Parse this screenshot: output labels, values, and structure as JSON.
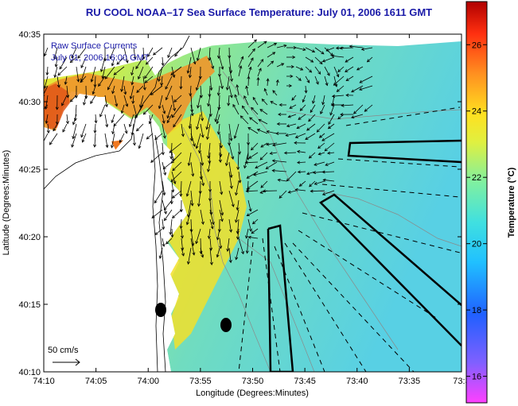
{
  "title": "RU COOL  NOAA–17  Sea Surface Temperature:  July 01, 2006 1611 GMT",
  "overlay": {
    "line1": "Raw Surface Currents",
    "line2": "July 01, 2006 16:00 GMT"
  },
  "scale_label": "50 cm/s",
  "axes": {
    "xlabel": "Longitude (Degrees:Minutes)",
    "ylabel": "Latitude (Degrees:Minutes)",
    "xticks": [
      "74:10",
      "74:05",
      "74:00",
      "73:55",
      "73:50",
      "73:45",
      "73:40",
      "73:35",
      "73:3"
    ],
    "yticks": [
      "40:35",
      "40:30",
      "40:25",
      "40:20",
      "40:15",
      "40:10"
    ]
  },
  "colorbar": {
    "label": "Temperature (°C)",
    "ticks": [
      "26",
      "24",
      "22",
      "20",
      "18",
      "16"
    ],
    "range": [
      15.2,
      27.3
    ]
  },
  "colors": {
    "title": "#1a1aa8",
    "warm": "#f07a20",
    "mid": "#f0e628",
    "cool": "#80e8a8",
    "sea": "#60d4e0"
  }
}
